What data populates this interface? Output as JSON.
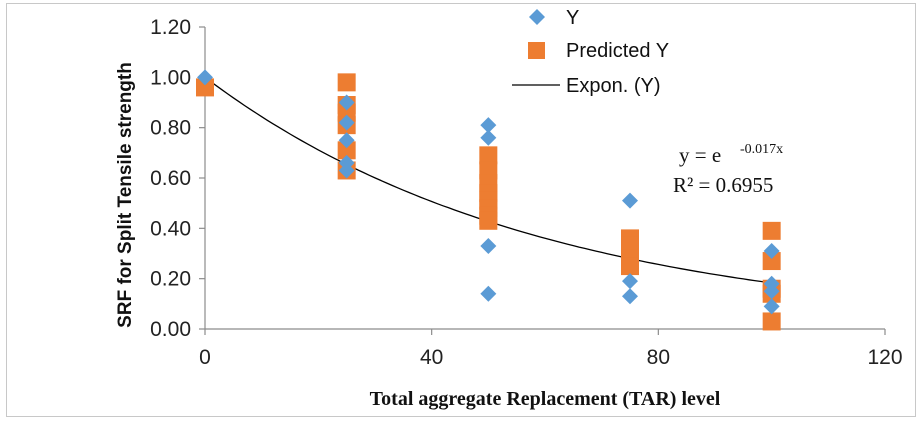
{
  "chart_data": {
    "type": "scatter",
    "title": "",
    "xlabel": "Total aggregate Replacement (TAR) level",
    "ylabel": "SRF for Split Tensile strength",
    "xlim": [
      0,
      120
    ],
    "ylim": [
      0,
      1.2
    ],
    "x_ticks": [
      "0",
      "40",
      "80",
      "120"
    ],
    "y_ticks": [
      "0.00",
      "0.20",
      "0.40",
      "0.60",
      "0.80",
      "1.00",
      "1.20"
    ],
    "grid": false,
    "legend_position": "top-center",
    "series": [
      {
        "name": "Y",
        "marker": "diamond",
        "color": "#5b9bd5",
        "x": [
          0,
          25,
          25,
          25,
          25,
          25,
          50,
          50,
          50,
          50,
          75,
          75,
          75,
          100,
          100,
          100,
          100
        ],
        "y": [
          1.0,
          0.9,
          0.82,
          0.75,
          0.66,
          0.63,
          0.81,
          0.76,
          0.33,
          0.14,
          0.51,
          0.19,
          0.13,
          0.31,
          0.18,
          0.15,
          0.09
        ]
      },
      {
        "name": "Predicted Y",
        "marker": "square",
        "color": "#ed7d31",
        "x": [
          0,
          25,
          25,
          25,
          25,
          25,
          25,
          50,
          50,
          50,
          50,
          50,
          50,
          50,
          50,
          75,
          75,
          75,
          75,
          75,
          100,
          100,
          100,
          100,
          100
        ],
        "y": [
          0.96,
          0.98,
          0.89,
          0.86,
          0.81,
          0.71,
          0.63,
          0.69,
          0.63,
          0.58,
          0.54,
          0.51,
          0.48,
          0.45,
          0.43,
          0.36,
          0.33,
          0.3,
          0.28,
          0.25,
          0.39,
          0.27,
          0.16,
          0.14,
          0.03
        ]
      },
      {
        "name": "Expon. (Y)",
        "type": "trendline",
        "color": "#000000",
        "function": "exp",
        "coefficient": -0.017,
        "x_range": [
          0,
          100
        ]
      }
    ],
    "annotations": {
      "equation_prefix": "y = e",
      "equation_exponent": "-0.017x",
      "r_squared": "R² = 0.6955"
    }
  }
}
